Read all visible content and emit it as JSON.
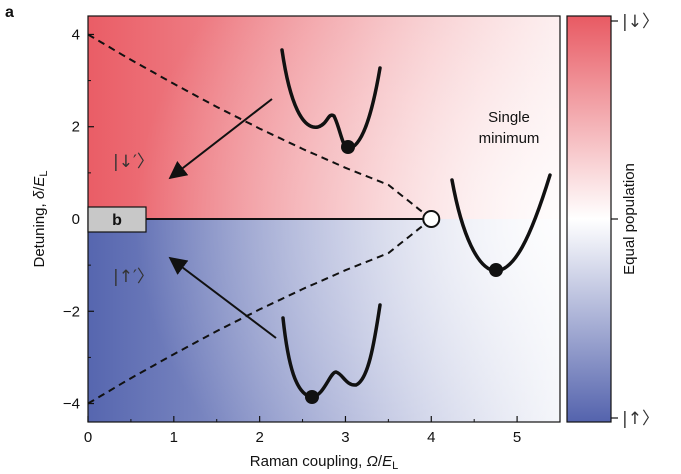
{
  "panel_label": "a",
  "inset_label": "b",
  "state_down": "|↓′〉",
  "state_up": "|↑′〉",
  "annotation": {
    "line1": "Single",
    "line2": "minimum"
  },
  "colorbar": {
    "label": "Equal population",
    "top": "|↓〉",
    "bottom": "|↑〉",
    "colors": {
      "top": "#e85a63",
      "mid": "#ffffff",
      "bottom": "#5463ad"
    }
  },
  "chart_data": {
    "type": "heatmap",
    "x": {
      "label_prefix": "Raman coupling, ",
      "label_var": "Ω",
      "label_sep": "/",
      "label_unit": "E",
      "label_sub": "L",
      "range": [
        0,
        5.5
      ],
      "ticks": [
        "0",
        "1",
        "2",
        "3",
        "4",
        "5"
      ],
      "tick_values": [
        0,
        1,
        2,
        3,
        4,
        5
      ]
    },
    "y": {
      "label_prefix": "Detuning, ",
      "label_var": "δ",
      "label_sep": "/",
      "label_unit": "E",
      "label_sub": "L",
      "range": [
        -4.4,
        4.4
      ],
      "ticks": [
        "4",
        "2",
        "0",
        "−2",
        "−4"
      ],
      "tick_values": [
        4,
        2,
        0,
        -2,
        -4
      ]
    },
    "phase_boundary": {
      "x": [
        0,
        0.5,
        1,
        1.5,
        2,
        2.5,
        3,
        3.5,
        4
      ],
      "y_upper": [
        4.0,
        3.45,
        2.93,
        2.43,
        1.96,
        1.52,
        1.11,
        0.74,
        0.0
      ],
      "y_lower": [
        -4.0,
        -3.45,
        -2.93,
        -2.43,
        -1.96,
        -1.52,
        -1.11,
        -0.74,
        0.0
      ]
    },
    "critical_point": {
      "x": 4,
      "y": 0
    },
    "transition_line": {
      "x": [
        0.67,
        4
      ],
      "y": [
        0,
        0
      ]
    },
    "inset_box": {
      "x": [
        0,
        0.67
      ],
      "y": [
        -0.3,
        0.3
      ]
    }
  }
}
